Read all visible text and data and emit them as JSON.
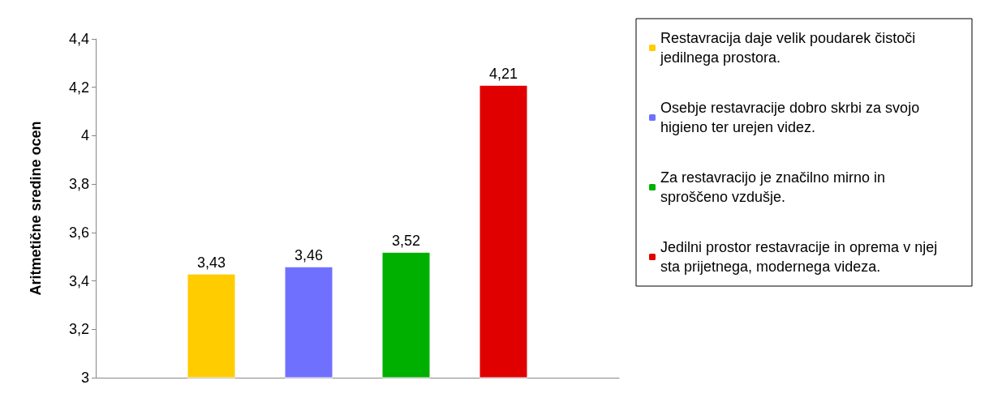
{
  "chart_data": {
    "type": "bar",
    "ylabel": "Aritmetične sredine ocen",
    "categories": [
      null
    ],
    "series": [
      {
        "name": "Restavracija daje velik poudarek čistoči jedilnega prostora.",
        "color": "#ffcc00",
        "values": [
          3.43
        ],
        "value_labels": [
          "3,43"
        ]
      },
      {
        "name": "Osebje restavracije dobro skrbi za svojo higieno ter urejen videz.",
        "color": "#7070ff",
        "values": [
          3.46
        ],
        "value_labels": [
          "3,46"
        ]
      },
      {
        "name": "Za restavracijo je značilno mirno in sproščeno vzdušje.",
        "color": "#00b000",
        "values": [
          3.52
        ],
        "value_labels": [
          "3,52"
        ]
      },
      {
        "name": "Jedilni prostor restavracije in oprema v njej sta prijetnega, modernega videza.",
        "color": "#e00000",
        "values": [
          4.21
        ],
        "value_labels": [
          "4,21"
        ]
      }
    ],
    "ylim": [
      3,
      4.4
    ],
    "yticks": [
      3,
      {
        "value": 3.2,
        "label": "3,2"
      },
      {
        "value": 3.4,
        "label": "3,4"
      },
      {
        "value": 3.6,
        "label": "3,6"
      },
      {
        "value": 3.8,
        "label": "3,8"
      },
      4,
      {
        "value": 4.2,
        "label": "4,2"
      },
      {
        "value": 4.4,
        "label": "4,4"
      }
    ],
    "grid": false,
    "legend": "right"
  }
}
